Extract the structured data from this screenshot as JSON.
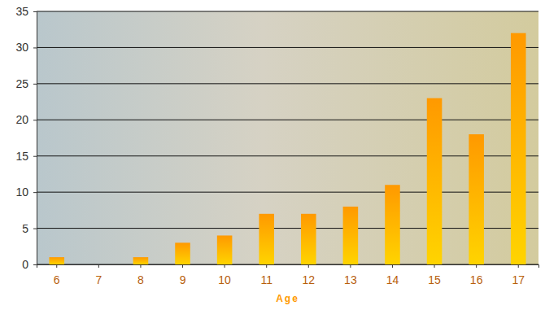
{
  "chart_data": {
    "type": "bar",
    "x_label": "Age",
    "categories": [
      "6",
      "7",
      "8",
      "9",
      "10",
      "11",
      "12",
      "13",
      "14",
      "15",
      "16",
      "17"
    ],
    "values": [
      1,
      0,
      1,
      3,
      4,
      7,
      7,
      8,
      11,
      23,
      18,
      32
    ],
    "color": "#ff9900",
    "ylim": [
      0,
      35
    ],
    "yticks": [
      0,
      5,
      10,
      15,
      20,
      25,
      30,
      35
    ],
    "grid": true
  }
}
